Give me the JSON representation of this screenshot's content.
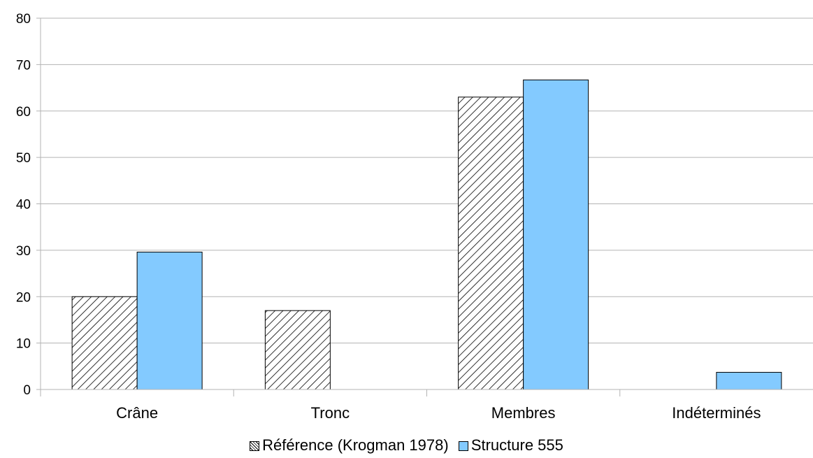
{
  "chart_data": {
    "type": "bar",
    "title": "",
    "xlabel": "",
    "ylabel": "",
    "categories": [
      "Crâne",
      "Tronc",
      "Membres",
      "Indéterminés"
    ],
    "series": [
      {
        "name": "Référence (Krogman 1978)",
        "values": [
          20,
          17,
          63,
          0
        ],
        "fill": "hatch"
      },
      {
        "name": "Structure 555",
        "values": [
          29.6,
          0,
          66.7,
          3.7
        ],
        "fill": "#83caff"
      }
    ],
    "ylim": [
      0,
      80
    ],
    "yticks": [
      0,
      10,
      20,
      30,
      40,
      50,
      60,
      70,
      80
    ],
    "grid": true,
    "legend_position": "bottom-center",
    "colors": {
      "structure": "#83caff",
      "grid": "#b3b3b3",
      "axis": "#b3b3b3",
      "bar_border": "#000000"
    }
  }
}
